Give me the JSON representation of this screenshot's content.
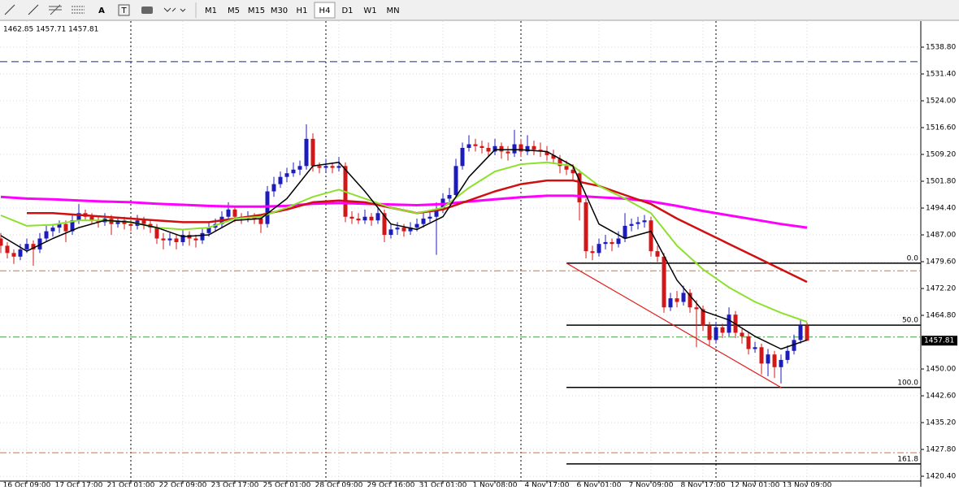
{
  "toolbar": {
    "text_tool": "A",
    "label_tool": "T",
    "timeframes": [
      "M1",
      "M5",
      "M15",
      "M30",
      "H1",
      "H4",
      "D1",
      "W1",
      "MN"
    ],
    "active": "H4"
  },
  "chart_data": {
    "type": "candlestick",
    "header": "1462.85 1457.71 1457.81",
    "bull_color": "#1c1cb8",
    "bear_color": "#d01818",
    "xlim": [
      -0.125,
      141.5
    ],
    "ylim": [
      1419.07,
      1545.98
    ],
    "yticks": [
      {
        "value": 1538.8,
        "label": "1538.80"
      },
      {
        "value": 1531.4,
        "label": "1531.40"
      },
      {
        "value": 1524,
        "label": "1524.00"
      },
      {
        "value": 1516.6,
        "label": "1516.60"
      },
      {
        "value": 1509.2,
        "label": "1509.20"
      },
      {
        "value": 1501.8,
        "label": "1501.80"
      },
      {
        "value": 1494.4,
        "label": "1494.40"
      },
      {
        "value": 1487,
        "label": "1487.00"
      },
      {
        "value": 1479.6,
        "label": "1479.60"
      },
      {
        "value": 1472.2,
        "label": "1472.20"
      },
      {
        "value": 1464.8,
        "label": "1464.80"
      },
      {
        "value": 1450,
        "label": "1450.00"
      },
      {
        "value": 1442.6,
        "label": "1442.60"
      },
      {
        "value": 1435.2,
        "label": "1435.20"
      },
      {
        "value": 1427.8,
        "label": "1427.80"
      },
      {
        "value": 1420.4,
        "label": "1420.40"
      }
    ],
    "x_labels": [
      "16 Oct 09:00",
      "17 Oct 17:00",
      "21 Oct 01:00",
      "22 Oct 09:00",
      "23 Oct 17:00",
      "25 Oct 01:00",
      "28 Oct 09:00",
      "29 Oct 16:00",
      "31 Oct 01:00",
      "1 Nov 08:00",
      "4 Nov 17:00",
      "6 Nov 01:00",
      "7 Nov 09:00",
      "8 Nov 17:00",
      "12 Nov 01:00",
      "13 Nov 09:00"
    ],
    "candles": [
      [
        1486,
        1487.5,
        1482,
        1484
      ],
      [
        1484,
        1485,
        1480.5,
        1482
      ],
      [
        1482,
        1483,
        1479,
        1481
      ],
      [
        1481,
        1484.5,
        1480,
        1483
      ],
      [
        1483,
        1486,
        1482,
        1484.5
      ],
      [
        1484.5,
        1485.5,
        1478.5,
        1483
      ],
      [
        1483,
        1487.5,
        1482,
        1486
      ],
      [
        1486,
        1489.5,
        1485,
        1488
      ],
      [
        1488,
        1490,
        1486.5,
        1489
      ],
      [
        1489,
        1491,
        1487.5,
        1490
      ],
      [
        1490,
        1491,
        1485,
        1488
      ],
      [
        1488,
        1492.5,
        1487,
        1491
      ],
      [
        1491,
        1495.5,
        1490,
        1493
      ],
      [
        1493,
        1494,
        1491,
        1492
      ],
      [
        1492,
        1493,
        1490,
        1491
      ],
      [
        1491,
        1492,
        1489,
        1490.5
      ],
      [
        1490.5,
        1493,
        1489.5,
        1491.5
      ],
      [
        1491.5,
        1492.5,
        1487,
        1490
      ],
      [
        1490,
        1492,
        1489,
        1491
      ],
      [
        1491,
        1492,
        1488.5,
        1490
      ],
      [
        1490,
        1491,
        1488,
        1489.5
      ],
      [
        1489.5,
        1492.5,
        1488.5,
        1491
      ],
      [
        1491,
        1492,
        1488.5,
        1490
      ],
      [
        1490,
        1491,
        1487.5,
        1489
      ],
      [
        1489,
        1490,
        1484.5,
        1486
      ],
      [
        1486,
        1487.5,
        1483,
        1485.5
      ],
      [
        1485.5,
        1487.5,
        1484,
        1486
      ],
      [
        1486,
        1487,
        1483,
        1485
      ],
      [
        1485,
        1488.5,
        1484,
        1487
      ],
      [
        1487,
        1488,
        1484,
        1486
      ],
      [
        1486,
        1487,
        1483.5,
        1485.5
      ],
      [
        1485.5,
        1489,
        1484.5,
        1487.5
      ],
      [
        1487.5,
        1490.5,
        1486.5,
        1489
      ],
      [
        1489,
        1491.5,
        1488,
        1490
      ],
      [
        1490,
        1493.5,
        1489,
        1492
      ],
      [
        1492,
        1496,
        1491,
        1494
      ],
      [
        1494,
        1495,
        1490.5,
        1492
      ],
      [
        1492,
        1493,
        1490,
        1491.5
      ],
      [
        1491.5,
        1493.5,
        1490.5,
        1492
      ],
      [
        1492,
        1493,
        1490,
        1491.5
      ],
      [
        1491.5,
        1492.5,
        1487.5,
        1490
      ],
      [
        1490,
        1500.5,
        1489,
        1499
      ],
      [
        1499,
        1503,
        1497.5,
        1501
      ],
      [
        1501,
        1504.5,
        1500,
        1503
      ],
      [
        1503,
        1505.5,
        1501.5,
        1504
      ],
      [
        1504,
        1507,
        1503,
        1505
      ],
      [
        1505,
        1507.5,
        1503.5,
        1506
      ],
      [
        1506,
        1517.5,
        1505,
        1513.5
      ],
      [
        1513.5,
        1515,
        1504.5,
        1506
      ],
      [
        1506,
        1507,
        1504,
        1505.5
      ],
      [
        1505.5,
        1508,
        1504.5,
        1506
      ],
      [
        1506,
        1507,
        1504,
        1505.5
      ],
      [
        1505.5,
        1508.5,
        1504.5,
        1506
      ],
      [
        1506,
        1507,
        1490.5,
        1492
      ],
      [
        1492,
        1493.5,
        1490,
        1491.5
      ],
      [
        1491.5,
        1493,
        1490,
        1491
      ],
      [
        1491,
        1494,
        1490,
        1492
      ],
      [
        1492,
        1493,
        1489.5,
        1491
      ],
      [
        1491,
        1494.5,
        1490,
        1493
      ],
      [
        1493,
        1494,
        1485,
        1487
      ],
      [
        1487,
        1490,
        1486,
        1488.5
      ],
      [
        1488.5,
        1490.5,
        1487,
        1489
      ],
      [
        1489,
        1490,
        1486.5,
        1488
      ],
      [
        1488,
        1490.5,
        1487,
        1489
      ],
      [
        1489,
        1491.5,
        1488,
        1490
      ],
      [
        1490,
        1493,
        1489,
        1491.5
      ],
      [
        1491.5,
        1493.5,
        1490.5,
        1492
      ],
      [
        1492,
        1496,
        1481.5,
        1494
      ],
      [
        1494,
        1498.5,
        1493,
        1497
      ],
      [
        1497,
        1500,
        1496,
        1498
      ],
      [
        1498,
        1508,
        1497,
        1506
      ],
      [
        1506,
        1512.5,
        1505,
        1511
      ],
      [
        1511,
        1514.5,
        1510,
        1512
      ],
      [
        1512,
        1513.5,
        1510,
        1511.5
      ],
      [
        1511.5,
        1513,
        1509.5,
        1511
      ],
      [
        1511,
        1512.5,
        1508.5,
        1510
      ],
      [
        1510,
        1513.5,
        1509,
        1511.5
      ],
      [
        1511.5,
        1512.5,
        1508,
        1510
      ],
      [
        1510,
        1511.5,
        1507.5,
        1509.5
      ],
      [
        1509.5,
        1516,
        1508.5,
        1512
      ],
      [
        1512,
        1513.5,
        1508.5,
        1510
      ],
      [
        1510,
        1514.5,
        1509,
        1511.5
      ],
      [
        1511.5,
        1513,
        1509,
        1510.5
      ],
      [
        1510.5,
        1512.5,
        1508.5,
        1510
      ],
      [
        1510,
        1511.5,
        1507.5,
        1509
      ],
      [
        1509,
        1510.5,
        1506.5,
        1508
      ],
      [
        1508,
        1509,
        1504,
        1506
      ],
      [
        1506,
        1507.5,
        1503.5,
        1505
      ],
      [
        1505,
        1506.5,
        1502,
        1504
      ],
      [
        1504,
        1505,
        1491,
        1496
      ],
      [
        1496,
        1497,
        1480.5,
        1482.5
      ],
      [
        1482.5,
        1484,
        1480,
        1482
      ],
      [
        1482,
        1486,
        1481,
        1484.5
      ],
      [
        1484.5,
        1487,
        1483,
        1485
      ],
      [
        1485,
        1486,
        1482.5,
        1484.5
      ],
      [
        1484.5,
        1488,
        1483.5,
        1486
      ],
      [
        1486,
        1493,
        1485,
        1489.5
      ],
      [
        1489.5,
        1491.5,
        1488,
        1490
      ],
      [
        1490,
        1492,
        1488.5,
        1490.5
      ],
      [
        1490.5,
        1492.5,
        1489,
        1491
      ],
      [
        1491,
        1492,
        1481,
        1482.5
      ],
      [
        1482.5,
        1484,
        1479.5,
        1481
      ],
      [
        1481,
        1482,
        1465.5,
        1467
      ],
      [
        1467,
        1471,
        1466,
        1469.5
      ],
      [
        1469.5,
        1471.5,
        1467,
        1468.5
      ],
      [
        1468.5,
        1473,
        1467.5,
        1471
      ],
      [
        1471,
        1472,
        1465.5,
        1467
      ],
      [
        1467,
        1469,
        1456,
        1466.5
      ],
      [
        1466.5,
        1467.5,
        1460.5,
        1462
      ],
      [
        1462,
        1463,
        1456.5,
        1458
      ],
      [
        1458,
        1463,
        1457,
        1461.5
      ],
      [
        1461.5,
        1462.5,
        1458.5,
        1460
      ],
      [
        1460,
        1467,
        1459,
        1465
      ],
      [
        1465,
        1466,
        1458.5,
        1460
      ],
      [
        1460,
        1461,
        1457,
        1459
      ],
      [
        1459,
        1460,
        1454,
        1455.5
      ],
      [
        1455.5,
        1457.5,
        1454.5,
        1456
      ],
      [
        1456,
        1457,
        1448.5,
        1451.5
      ],
      [
        1451.5,
        1455.5,
        1448,
        1454
      ],
      [
        1454,
        1455,
        1447.5,
        1450.5
      ],
      [
        1450.5,
        1454,
        1446,
        1452.5
      ],
      [
        1452.5,
        1456.5,
        1451.5,
        1455
      ],
      [
        1455,
        1459.5,
        1454,
        1458
      ],
      [
        1458,
        1463.5,
        1457,
        1462
      ],
      [
        1462,
        1462.85,
        1457.71,
        1457.81
      ]
    ],
    "ma_x": [
      0,
      4,
      8,
      12,
      16,
      20,
      24,
      28,
      32,
      36,
      40,
      44,
      48,
      52,
      56,
      60,
      64,
      68,
      72,
      76,
      80,
      84,
      88,
      92,
      96,
      100,
      104,
      108,
      112,
      116,
      120,
      124
    ],
    "moving_averages": [
      {
        "color": "#ff00ff",
        "width": 3,
        "values": [
          1497.5,
          1497,
          1496.8,
          1496.5,
          1496.2,
          1496,
          1495.6,
          1495.3,
          1495,
          1494.8,
          1494.8,
          1495,
          1495.6,
          1495.8,
          1495.6,
          1495.4,
          1495.2,
          1495.5,
          1496.2,
          1496.8,
          1497.4,
          1497.8,
          1497.8,
          1497.4,
          1497,
          1496.2,
          1495,
          1493.6,
          1492.4,
          1491.2,
          1490,
          1489
        ]
      },
      {
        "color": "#d01010",
        "width": 2.5,
        "values": [
          null,
          1493,
          1493,
          1492.5,
          1492,
          1491.5,
          1491,
          1490.5,
          1490.5,
          1491.5,
          1492.5,
          1494,
          1496,
          1496.5,
          1496,
          1494.5,
          1493,
          1494,
          1496.5,
          1499,
          1501,
          1502,
          1502,
          1500.5,
          1498,
          1495.5,
          1491.5,
          1488,
          1484.5,
          1481,
          1477.5,
          1474
        ]
      },
      {
        "color": "#8ee02e",
        "width": 2,
        "values": [
          1492.4,
          1489.5,
          1489.8,
          1491,
          1491,
          1490.5,
          1489,
          1488.5,
          1489,
          1491.5,
          1492,
          1494.5,
          1497.5,
          1499.5,
          1497,
          1494.5,
          1493,
          1494.5,
          1500,
          1504.5,
          1506.5,
          1507,
          1506,
          1500.5,
          1497,
          1493,
          1484,
          1477.5,
          1472.5,
          1468.5,
          1465.5,
          1463
        ]
      },
      {
        "color": "#000000",
        "width": 1.5,
        "values": [
          1486.8,
          1482.5,
          1486,
          1489,
          1491,
          1490.5,
          1489,
          1486.5,
          1487,
          1491,
          1491.5,
          1497,
          1506,
          1507,
          1499,
          1490,
          1488.5,
          1492,
          1503,
          1510.5,
          1510.5,
          1510,
          1506,
          1490,
          1486,
          1488,
          1474.5,
          1466,
          1463.5,
          1459,
          1455.5,
          1458
        ]
      }
    ],
    "h_lines": [
      {
        "price": 1534.8,
        "color": "#1a2a8a",
        "dash": "9 5"
      },
      {
        "price": 1477.1,
        "color": "#e07030",
        "dash": "8 3 2 3"
      },
      {
        "price": 1458.8,
        "color": "#40a040",
        "dash": "8 3 2 3"
      },
      {
        "price": 1426.9,
        "color": "#e07030",
        "dash": "8 3 2 3"
      }
    ],
    "fib": {
      "start": 87,
      "color": "#000000",
      "levels": [
        {
          "label": "0.0",
          "price": 1479.2
        },
        {
          "label": "50.0",
          "price": 1462.1
        },
        {
          "label": "100.0",
          "price": 1444.9
        },
        {
          "label": "161.8",
          "price": 1423.8
        }
      ]
    },
    "trendline": {
      "color": "#e02020",
      "from": [
        87,
        1479.2
      ],
      "to": [
        120,
        1444.9
      ]
    }
  }
}
